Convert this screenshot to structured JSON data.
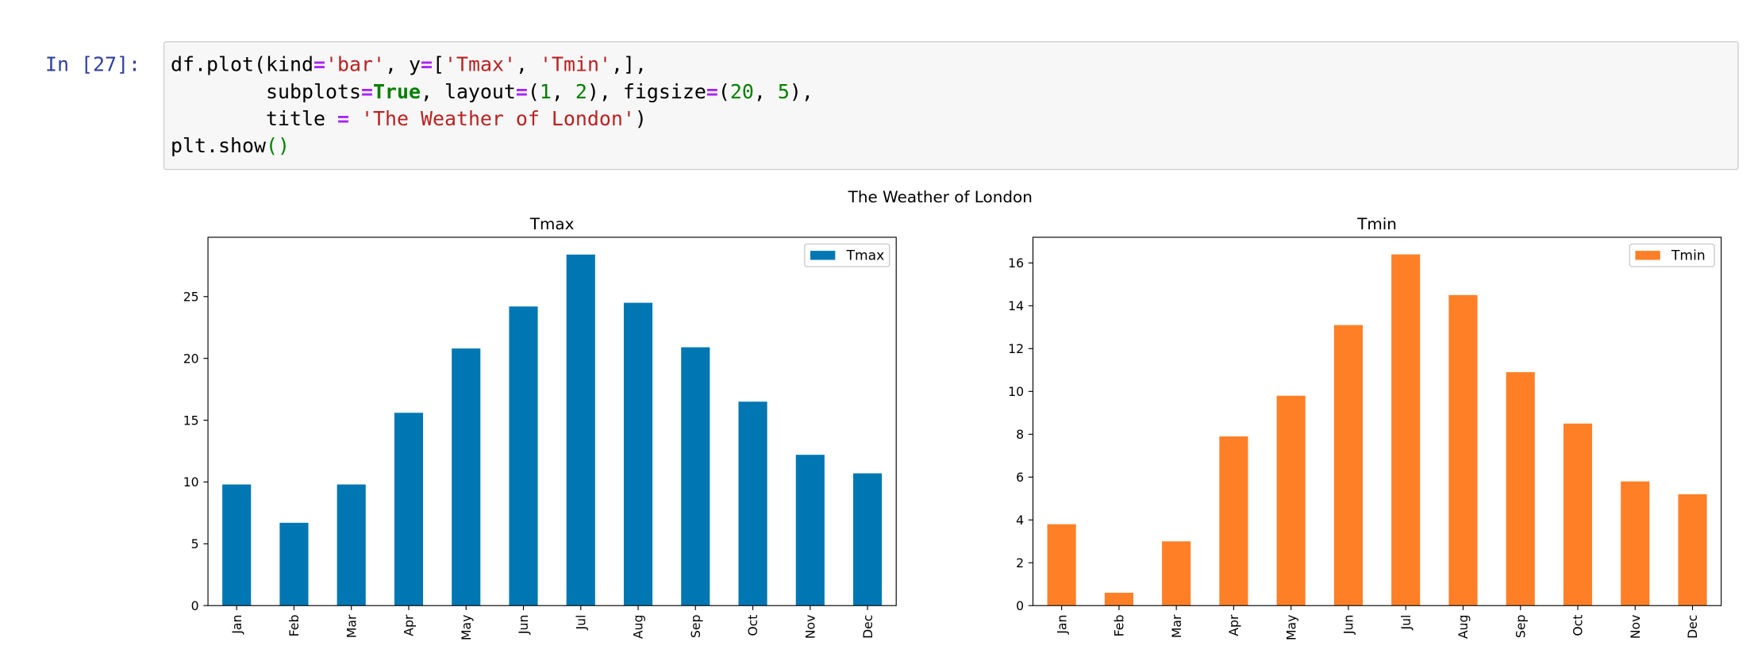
{
  "cell": {
    "prompt": "In [27]:",
    "code": [
      [
        {
          "t": "df.plot(kind",
          "k": "plain"
        },
        {
          "t": "=",
          "k": "op"
        },
        {
          "t": "'bar'",
          "k": "str"
        },
        {
          "t": ", y",
          "k": "plain"
        },
        {
          "t": "=",
          "k": "op"
        },
        {
          "t": "[",
          "k": "plain"
        },
        {
          "t": "'Tmax'",
          "k": "str"
        },
        {
          "t": ", ",
          "k": "plain"
        },
        {
          "t": "'Tmin'",
          "k": "str"
        },
        {
          "t": ",],",
          "k": "plain"
        }
      ],
      [
        {
          "t": "        subplots",
          "k": "plain"
        },
        {
          "t": "=",
          "k": "op"
        },
        {
          "t": "True",
          "k": "kw"
        },
        {
          "t": ", layout",
          "k": "plain"
        },
        {
          "t": "=",
          "k": "op"
        },
        {
          "t": "(",
          "k": "plain"
        },
        {
          "t": "1",
          "k": "num"
        },
        {
          "t": ", ",
          "k": "plain"
        },
        {
          "t": "2",
          "k": "num"
        },
        {
          "t": "), figsize",
          "k": "plain"
        },
        {
          "t": "=",
          "k": "op"
        },
        {
          "t": "(",
          "k": "plain"
        },
        {
          "t": "20",
          "k": "num"
        },
        {
          "t": ", ",
          "k": "plain"
        },
        {
          "t": "5",
          "k": "num"
        },
        {
          "t": "),",
          "k": "plain"
        }
      ],
      [
        {
          "t": "        title ",
          "k": "plain"
        },
        {
          "t": "=",
          "k": "op"
        },
        {
          "t": " ",
          "k": "plain"
        },
        {
          "t": "'The Weather of London'",
          "k": "str"
        },
        {
          "t": ")",
          "k": "plain"
        }
      ],
      [
        {
          "t": "plt.show",
          "k": "plain"
        },
        {
          "t": "()",
          "k": "num"
        }
      ]
    ]
  },
  "figure_title": "The Weather of London",
  "chart_data": [
    {
      "type": "bar",
      "title": "Tmax",
      "categories": [
        "Jan",
        "Feb",
        "Mar",
        "Apr",
        "May",
        "Jun",
        "Jul",
        "Aug",
        "Sep",
        "Oct",
        "Nov",
        "Dec"
      ],
      "series": [
        {
          "name": "Tmax",
          "color": "#0077b3",
          "values": [
            9.8,
            6.7,
            9.8,
            15.6,
            20.8,
            24.2,
            28.4,
            24.5,
            20.9,
            16.5,
            12.2,
            10.7
          ]
        }
      ],
      "ylim": [
        0,
        29.8
      ],
      "yticks": [
        0,
        5,
        10,
        15,
        20,
        25
      ],
      "legend": "upper right"
    },
    {
      "type": "bar",
      "title": "Tmin",
      "categories": [
        "Jan",
        "Feb",
        "Mar",
        "Apr",
        "May",
        "Jun",
        "Jul",
        "Aug",
        "Sep",
        "Oct",
        "Nov",
        "Dec"
      ],
      "series": [
        {
          "name": "Tmin",
          "color": "#ff7f27",
          "values": [
            3.8,
            0.6,
            3.0,
            7.9,
            9.8,
            13.1,
            16.4,
            14.5,
            10.9,
            8.5,
            5.8,
            5.2
          ]
        }
      ],
      "ylim": [
        0,
        17.2
      ],
      "yticks": [
        0,
        2,
        4,
        6,
        8,
        10,
        12,
        14,
        16
      ],
      "legend": "upper right"
    }
  ]
}
